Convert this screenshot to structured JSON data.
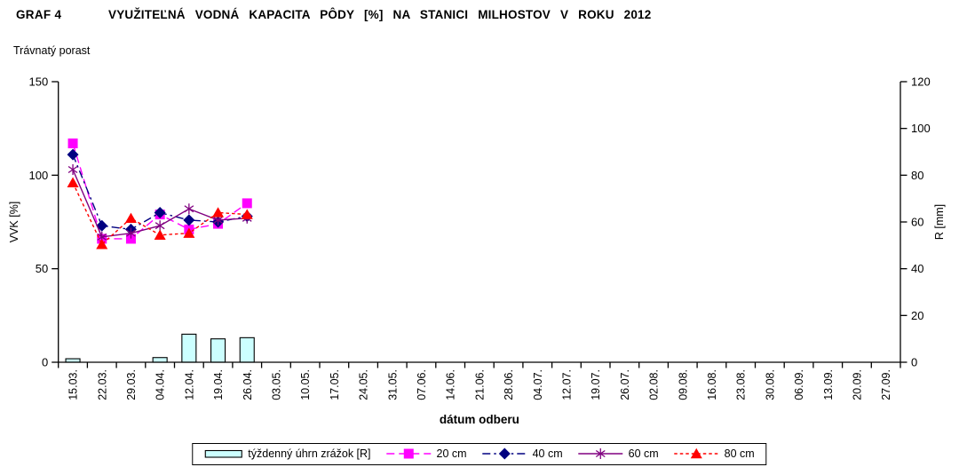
{
  "header": {
    "graf_label": "GRAF 4",
    "title": "VYUŽITEĽNÁ VODNÁ KAPACITA PÔDY [%] NA STANICI MILHOSTOV V ROKU 2012",
    "subtitle": "Trávnatý porast"
  },
  "chart_data": {
    "type": "combo: bar + line",
    "title": "VYUŽITEĽNÁ VODNÁ KAPACITA PÔDY [%] NA STANICI MILHOSTOV V ROKU 2012",
    "subtitle": "Trávnatý porast",
    "xlabel": "dátum odberu",
    "grid": false,
    "legend_position": "bottom",
    "categories": [
      "15.03.",
      "22.03.",
      "29.03.",
      "04.04.",
      "12.04.",
      "19.04.",
      "26.04.",
      "03.05.",
      "10.05.",
      "17.05.",
      "24.05.",
      "31.05.",
      "07.06.",
      "14.06.",
      "21.06.",
      "28.06.",
      "04.07.",
      "12.07.",
      "19.07.",
      "26.07.",
      "02.08.",
      "09.08.",
      "16.08.",
      "23.08.",
      "30.08.",
      "06.09.",
      "13.09.",
      "20.09.",
      "27.09."
    ],
    "left_axis": {
      "label": "VVK [%]",
      "min": 0,
      "max": 150,
      "ticks": [
        0,
        50,
        100,
        150
      ]
    },
    "right_axis": {
      "label": "R [mm]",
      "min": 0,
      "max": 120,
      "ticks": [
        0,
        20,
        40,
        60,
        80,
        100,
        120
      ]
    },
    "bar_series": {
      "name": "týždenný úhrn zrážok [R]",
      "axis": "right",
      "fill": "#CCFFFF",
      "stroke": "#000000",
      "values": [
        1.5,
        0,
        0,
        2,
        12,
        10,
        10.5,
        null,
        null,
        null,
        null,
        null,
        null,
        null,
        null,
        null,
        null,
        null,
        null,
        null,
        null,
        null,
        null,
        null,
        null,
        null,
        null,
        null,
        null
      ]
    },
    "line_series": [
      {
        "name": "20 cm",
        "axis": "left",
        "color": "#FF00FF",
        "marker": "square",
        "dash": "9 5",
        "values": [
          117,
          66,
          66,
          79,
          71,
          74,
          85,
          null,
          null,
          null,
          null,
          null,
          null,
          null,
          null,
          null,
          null,
          null,
          null,
          null,
          null,
          null,
          null,
          null,
          null,
          null,
          null,
          null,
          null
        ]
      },
      {
        "name": "40 cm",
        "axis": "left",
        "color": "#000080",
        "marker": "diamond",
        "dash": "9 4 2.5 4",
        "values": [
          111,
          73,
          71,
          80,
          76,
          75,
          78,
          null,
          null,
          null,
          null,
          null,
          null,
          null,
          null,
          null,
          null,
          null,
          null,
          null,
          null,
          null,
          null,
          null,
          null,
          null,
          null,
          null,
          null
        ]
      },
      {
        "name": "60 cm",
        "axis": "left",
        "color": "#800080",
        "marker": "asterisk",
        "dash": "",
        "values": [
          103,
          67,
          69,
          73,
          82,
          76,
          77,
          null,
          null,
          null,
          null,
          null,
          null,
          null,
          null,
          null,
          null,
          null,
          null,
          null,
          null,
          null,
          null,
          null,
          null,
          null,
          null,
          null,
          null
        ]
      },
      {
        "name": "80 cm",
        "axis": "left",
        "color": "#FF0000",
        "marker": "triangle",
        "dash": "3.5 3",
        "values": [
          96,
          63,
          77,
          68,
          69,
          80,
          79,
          null,
          null,
          null,
          null,
          null,
          null,
          null,
          null,
          null,
          null,
          null,
          null,
          null,
          null,
          null,
          null,
          null,
          null,
          null,
          null,
          null,
          null
        ]
      }
    ]
  }
}
